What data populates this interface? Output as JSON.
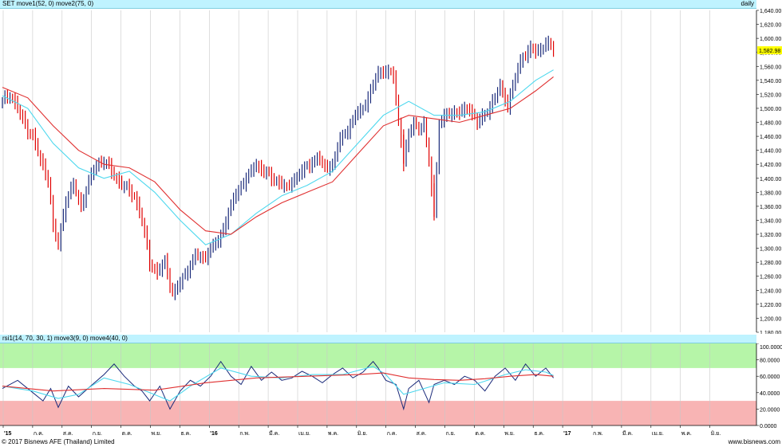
{
  "header": {
    "title": "SET move1(52, 0) move2(75, 0)",
    "period": "daily"
  },
  "rsi_header": {
    "title": "rsi1(14, 70, 30, 1) move3(9, 0) move4(40, 0)"
  },
  "footer": {
    "copyright": "© 2017 Bisnews AFE (Thailand) Limited",
    "site": "www.bisnews.com"
  },
  "colors": {
    "up_bar": "#1a2a7a",
    "down_bar": "#e00000",
    "ma52": "#4dd8ee",
    "ma75": "#e03030",
    "overbought_zone": "#b6f5a8",
    "oversold_zone": "#f8b4b4",
    "grid": "#c8c8c8",
    "header_bg": "#bff3ff",
    "last_price_bg": "#ffff00"
  },
  "chart_data": [
    {
      "type": "candlestick",
      "title": "SET move1(52, 0) move2(75, 0)",
      "period": "daily",
      "last_price": "1,582.98",
      "ylim": [
        1180,
        1640
      ],
      "yticks": [
        "1,180.00",
        "1,200.00",
        "1,220.00",
        "1,240.00",
        "1,260.00",
        "1,280.00",
        "1,300.00",
        "1,320.00",
        "1,340.00",
        "1,360.00",
        "1,380.00",
        "1,400.00",
        "1,420.00",
        "1,440.00",
        "1,460.00",
        "1,480.00",
        "1,500.00",
        "1,520.00",
        "1,540.00",
        "1,560.00",
        "1,580.00",
        "1,600.00",
        "1,620.00",
        "1,640.00"
      ],
      "xticks": [
        "'15",
        "ก.ค.",
        "ส.ค.",
        "ก.ย.",
        "ต.ค.",
        "พ.ย.",
        "ธ.ค.",
        "'16",
        "ก.พ.",
        "มี.ค.",
        "เม.ย.",
        "พ.ค.",
        "มิ.ย.",
        "ก.ค.",
        "ส.ค.",
        "ก.ย.",
        "ต.ค.",
        "พ.ย.",
        "ธ.ค.",
        "'17",
        "ก.พ.",
        "มี.ค.",
        "เม.ย.",
        "พ.ค.",
        "มิ.ย."
      ],
      "series_close": [
        [
          0,
          1510
        ],
        [
          3,
          1520
        ],
        [
          6,
          1500
        ],
        [
          9,
          1475
        ],
        [
          12,
          1460
        ],
        [
          15,
          1425
        ],
        [
          18,
          1400
        ],
        [
          20,
          1330
        ],
        [
          22,
          1305
        ],
        [
          25,
          1370
        ],
        [
          28,
          1390
        ],
        [
          31,
          1360
        ],
        [
          34,
          1395
        ],
        [
          37,
          1420
        ],
        [
          40,
          1425
        ],
        [
          43,
          1410
        ],
        [
          46,
          1395
        ],
        [
          49,
          1385
        ],
        [
          52,
          1375
        ],
        [
          55,
          1340
        ],
        [
          58,
          1280
        ],
        [
          61,
          1265
        ],
        [
          64,
          1280
        ],
        [
          67,
          1235
        ],
        [
          70,
          1250
        ],
        [
          73,
          1270
        ],
        [
          76,
          1290
        ],
        [
          79,
          1285
        ],
        [
          82,
          1300
        ],
        [
          85,
          1310
        ],
        [
          88,
          1340
        ],
        [
          91,
          1370
        ],
        [
          94,
          1390
        ],
        [
          97,
          1405
        ],
        [
          100,
          1420
        ],
        [
          103,
          1410
        ],
        [
          106,
          1400
        ],
        [
          109,
          1395
        ],
        [
          112,
          1385
        ],
        [
          115,
          1400
        ],
        [
          118,
          1410
        ],
        [
          121,
          1420
        ],
        [
          124,
          1430
        ],
        [
          127,
          1415
        ],
        [
          130,
          1420
        ],
        [
          133,
          1455
        ],
        [
          136,
          1470
        ],
        [
          139,
          1490
        ],
        [
          142,
          1500
        ],
        [
          145,
          1525
        ],
        [
          148,
          1550
        ],
        [
          151,
          1555
        ],
        [
          154,
          1545
        ],
        [
          156,
          1480
        ],
        [
          158,
          1430
        ],
        [
          160,
          1460
        ],
        [
          162,
          1480
        ],
        [
          164,
          1470
        ],
        [
          166,
          1480
        ],
        [
          168,
          1420
        ],
        [
          170,
          1350
        ],
        [
          172,
          1480
        ],
        [
          175,
          1490
        ],
        [
          178,
          1495
        ],
        [
          181,
          1495
        ],
        [
          184,
          1500
        ],
        [
          187,
          1480
        ],
        [
          190,
          1490
        ],
        [
          193,
          1510
        ],
        [
          196,
          1530
        ],
        [
          199,
          1505
        ],
        [
          202,
          1545
        ],
        [
          205,
          1575
        ],
        [
          208,
          1585
        ],
        [
          211,
          1580
        ],
        [
          214,
          1595
        ],
        [
          217,
          1583
        ]
      ],
      "ma52": [
        [
          0,
          1518
        ],
        [
          10,
          1500
        ],
        [
          20,
          1450
        ],
        [
          30,
          1415
        ],
        [
          40,
          1400
        ],
        [
          50,
          1410
        ],
        [
          60,
          1380
        ],
        [
          70,
          1340
        ],
        [
          80,
          1305
        ],
        [
          90,
          1320
        ],
        [
          100,
          1350
        ],
        [
          110,
          1375
        ],
        [
          120,
          1390
        ],
        [
          130,
          1410
        ],
        [
          140,
          1450
        ],
        [
          150,
          1490
        ],
        [
          160,
          1510
        ],
        [
          170,
          1490
        ],
        [
          180,
          1490
        ],
        [
          190,
          1495
        ],
        [
          200,
          1510
        ],
        [
          210,
          1540
        ],
        [
          217,
          1555
        ]
      ],
      "ma75": [
        [
          0,
          1530
        ],
        [
          10,
          1515
        ],
        [
          20,
          1475
        ],
        [
          30,
          1440
        ],
        [
          40,
          1420
        ],
        [
          50,
          1415
        ],
        [
          60,
          1395
        ],
        [
          70,
          1355
        ],
        [
          80,
          1325
        ],
        [
          90,
          1320
        ],
        [
          100,
          1345
        ],
        [
          110,
          1365
        ],
        [
          120,
          1380
        ],
        [
          130,
          1395
        ],
        [
          140,
          1435
        ],
        [
          150,
          1475
        ],
        [
          160,
          1490
        ],
        [
          170,
          1485
        ],
        [
          180,
          1480
        ],
        [
          190,
          1490
        ],
        [
          200,
          1500
        ],
        [
          210,
          1525
        ],
        [
          217,
          1545
        ]
      ]
    },
    {
      "type": "line",
      "title": "rsi1(14, 70, 30, 1) move3(9, 0) move4(40, 0)",
      "ylim": [
        0,
        100
      ],
      "yticks": [
        "0.0000",
        "20.0000",
        "40.0000",
        "60.0000",
        "80.0000",
        "100.0000"
      ],
      "zones": [
        {
          "from": 70,
          "to": 100
        },
        {
          "from": 0,
          "to": 30
        }
      ],
      "series": [
        {
          "name": "rsi1",
          "x": [
            0,
            6,
            12,
            16,
            19,
            22,
            26,
            30,
            34,
            40,
            44,
            48,
            52,
            55,
            58,
            62,
            66,
            70,
            74,
            78,
            82,
            86,
            90,
            94,
            98,
            102,
            106,
            110,
            114,
            118,
            122,
            126,
            130,
            134,
            138,
            142,
            146,
            148,
            151,
            155,
            158,
            160,
            164,
            168,
            170,
            174,
            178,
            182,
            186,
            190,
            194,
            198,
            202,
            206,
            210,
            214,
            217
          ],
          "y": [
            45,
            55,
            40,
            30,
            45,
            22,
            48,
            35,
            46,
            62,
            75,
            60,
            48,
            42,
            30,
            48,
            20,
            42,
            55,
            48,
            60,
            78,
            60,
            50,
            72,
            55,
            65,
            55,
            58,
            66,
            60,
            52,
            62,
            70,
            58,
            65,
            78,
            70,
            55,
            50,
            20,
            45,
            55,
            28,
            50,
            55,
            50,
            60,
            55,
            42,
            60,
            70,
            55,
            75,
            60,
            70,
            58
          ]
        },
        {
          "name": "move3",
          "x": [
            0,
            12,
            22,
            30,
            40,
            50,
            58,
            66,
            74,
            86,
            98,
            110,
            122,
            134,
            146,
            151,
            158,
            166,
            174,
            186,
            198,
            206,
            214,
            217
          ],
          "y": [
            48,
            42,
            33,
            38,
            58,
            50,
            40,
            30,
            48,
            70,
            60,
            58,
            62,
            62,
            72,
            62,
            38,
            45,
            52,
            50,
            62,
            68,
            65,
            61
          ]
        },
        {
          "name": "move4",
          "x": [
            0,
            20,
            40,
            60,
            80,
            100,
            120,
            140,
            150,
            160,
            170,
            180,
            190,
            200,
            210,
            217
          ],
          "y": [
            48,
            42,
            45,
            43,
            52,
            58,
            60,
            62,
            64,
            58,
            56,
            55,
            57,
            60,
            62,
            60
          ]
        }
      ]
    }
  ]
}
